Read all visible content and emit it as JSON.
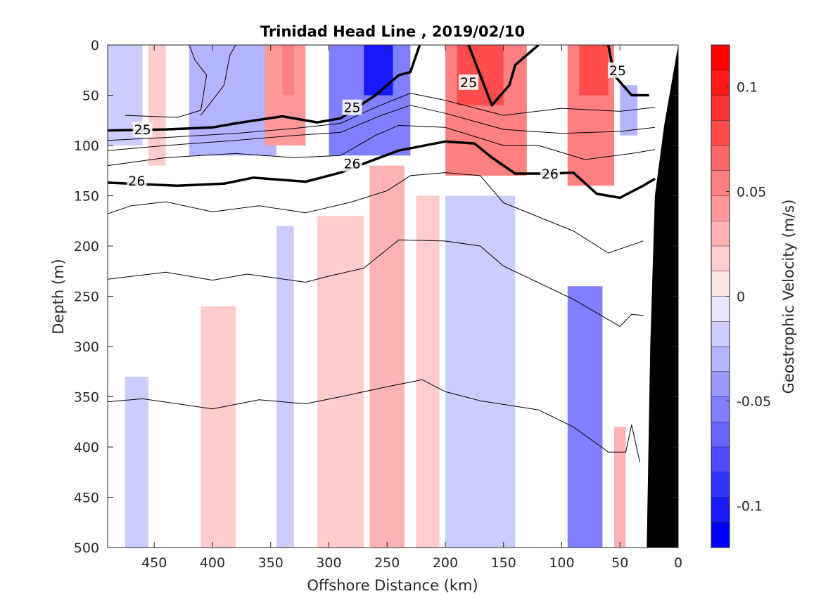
{
  "chart_data": {
    "type": "heatmap",
    "title": "Trinidad Head Line , 2019/02/10",
    "xlabel": "Offshore Distance (km)",
    "ylabel": "Depth (m)",
    "colorbar_label": "Geostrophic Velocity (m/s)",
    "xlim": [
      490,
      0
    ],
    "ylim": [
      500,
      0
    ],
    "x_reversed": true,
    "y_reversed": true,
    "xticks": [
      450,
      400,
      350,
      300,
      250,
      200,
      150,
      100,
      50,
      0
    ],
    "xtick_labels": [
      "450",
      "400",
      "350",
      "300",
      "250",
      "200",
      "150",
      "100",
      "50",
      "0"
    ],
    "yticks": [
      0,
      50,
      100,
      150,
      200,
      250,
      300,
      350,
      400,
      450,
      500
    ],
    "ytick_labels": [
      "0",
      "50",
      "100",
      "150",
      "200",
      "250",
      "300",
      "350",
      "400",
      "450",
      "500"
    ],
    "colorbar": {
      "range": [
        -0.12,
        0.12
      ],
      "ticks": [
        0.1,
        0.05,
        0,
        -0.05,
        -0.1
      ],
      "tick_labels": [
        "0.1",
        "0.05",
        "0",
        "-0.05",
        "-0.1"
      ],
      "levels": 20,
      "negative_color": "#0000ff",
      "zero_color": "#ffffff",
      "positive_color": "#ff0000"
    },
    "velocity_cells": [
      {
        "x0": 490,
        "x1": 460,
        "z0": 0,
        "z1": 100,
        "v": -0.02
      },
      {
        "x0": 455,
        "x1": 440,
        "z0": 0,
        "z1": 120,
        "v": 0.02
      },
      {
        "x0": 420,
        "x1": 345,
        "z0": 0,
        "z1": 110,
        "v": -0.03
      },
      {
        "x0": 355,
        "x1": 320,
        "z0": 0,
        "z1": 100,
        "v": 0.04
      },
      {
        "x0": 340,
        "x1": 330,
        "z0": 0,
        "z1": 50,
        "v": 0.06
      },
      {
        "x0": 300,
        "x1": 230,
        "z0": 0,
        "z1": 110,
        "v": -0.05
      },
      {
        "x0": 270,
        "x1": 245,
        "z0": 0,
        "z1": 50,
        "v": -0.1
      },
      {
        "x0": 200,
        "x1": 130,
        "z0": 0,
        "z1": 130,
        "v": 0.05
      },
      {
        "x0": 190,
        "x1": 150,
        "z0": 0,
        "z1": 60,
        "v": 0.08
      },
      {
        "x0": 95,
        "x1": 55,
        "z0": 0,
        "z1": 140,
        "v": 0.05
      },
      {
        "x0": 85,
        "x1": 60,
        "z0": 0,
        "z1": 50,
        "v": 0.08
      },
      {
        "x0": 50,
        "x1": 35,
        "z0": 40,
        "z1": 90,
        "v": -0.03
      },
      {
        "x0": 310,
        "x1": 270,
        "z0": 170,
        "z1": 500,
        "v": 0.015
      },
      {
        "x0": 265,
        "x1": 235,
        "z0": 120,
        "z1": 500,
        "v": 0.03
      },
      {
        "x0": 225,
        "x1": 205,
        "z0": 150,
        "z1": 500,
        "v": 0.015
      },
      {
        "x0": 200,
        "x1": 140,
        "z0": 150,
        "z1": 500,
        "v": -0.02
      },
      {
        "x0": 95,
        "x1": 65,
        "z0": 240,
        "z1": 500,
        "v": -0.05
      },
      {
        "x0": 410,
        "x1": 380,
        "z0": 260,
        "z1": 500,
        "v": 0.015
      },
      {
        "x0": 345,
        "x1": 330,
        "z0": 180,
        "z1": 500,
        "v": -0.015
      },
      {
        "x0": 475,
        "x1": 455,
        "z0": 330,
        "z1": 500,
        "v": -0.015
      },
      {
        "x0": 55,
        "x1": 45,
        "z0": 380,
        "z1": 500,
        "v": 0.03
      }
    ],
    "isopycnals": [
      {
        "level": 25,
        "bold": true,
        "labels": [
          {
            "text": "25",
            "x": 460,
            "z": 84
          },
          {
            "text": "25",
            "x": 280,
            "z": 62
          },
          {
            "text": "25",
            "x": 180,
            "z": 37
          },
          {
            "text": "25",
            "x": 52,
            "z": 25
          }
        ]
      },
      {
        "level": 26,
        "bold": true,
        "labels": [
          {
            "text": "26",
            "x": 465,
            "z": 135
          },
          {
            "text": "26",
            "x": 280,
            "z": 118
          },
          {
            "text": "26",
            "x": 110,
            "z": 128
          }
        ]
      }
    ],
    "contour_lines": [
      {
        "bold": false,
        "points": [
          [
            475,
            70
          ],
          [
            430,
            72
          ],
          [
            410,
            65
          ],
          [
            405,
            30
          ],
          [
            415,
            15
          ],
          [
            420,
            0
          ]
        ]
      },
      {
        "bold": false,
        "points": [
          [
            410,
            70
          ],
          [
            390,
            40
          ],
          [
            385,
            10
          ],
          [
            380,
            0
          ]
        ]
      },
      {
        "bold": true,
        "points": [
          [
            490,
            85
          ],
          [
            440,
            84
          ],
          [
            400,
            82
          ],
          [
            380,
            78
          ],
          [
            340,
            71
          ],
          [
            310,
            77
          ],
          [
            290,
            73
          ],
          [
            260,
            50
          ],
          [
            240,
            30
          ],
          [
            230,
            27
          ],
          [
            222,
            0
          ]
        ]
      },
      {
        "bold": true,
        "points": [
          [
            180,
            0
          ],
          [
            170,
            30
          ],
          [
            160,
            60
          ],
          [
            145,
            40
          ],
          [
            140,
            20
          ],
          [
            120,
            0
          ]
        ]
      },
      {
        "bold": true,
        "points": [
          [
            60,
            0
          ],
          [
            55,
            30
          ],
          [
            40,
            50
          ],
          [
            25,
            50
          ]
        ]
      },
      {
        "bold": false,
        "points": [
          [
            490,
            95
          ],
          [
            440,
            92
          ],
          [
            380,
            88
          ],
          [
            330,
            83
          ],
          [
            290,
            78
          ],
          [
            260,
            62
          ],
          [
            230,
            48
          ],
          [
            200,
            55
          ],
          [
            150,
            70
          ],
          [
            100,
            63
          ],
          [
            50,
            66
          ],
          [
            20,
            62
          ]
        ]
      },
      {
        "bold": false,
        "points": [
          [
            490,
            105
          ],
          [
            440,
            100
          ],
          [
            380,
            95
          ],
          [
            330,
            90
          ],
          [
            290,
            87
          ],
          [
            255,
            70
          ],
          [
            230,
            60
          ],
          [
            200,
            68
          ],
          [
            150,
            84
          ],
          [
            100,
            88
          ],
          [
            50,
            86
          ],
          [
            20,
            82
          ]
        ]
      },
      {
        "bold": false,
        "points": [
          [
            490,
            120
          ],
          [
            440,
            112
          ],
          [
            380,
            108
          ],
          [
            330,
            112
          ],
          [
            290,
            110
          ],
          [
            260,
            90
          ],
          [
            240,
            80
          ],
          [
            200,
            82
          ],
          [
            150,
            100
          ],
          [
            120,
            100
          ],
          [
            80,
            114
          ],
          [
            40,
            108
          ],
          [
            20,
            104
          ]
        ]
      },
      {
        "bold": true,
        "points": [
          [
            490,
            137
          ],
          [
            430,
            140
          ],
          [
            390,
            138
          ],
          [
            365,
            132
          ],
          [
            320,
            136
          ],
          [
            290,
            127
          ],
          [
            270,
            118
          ],
          [
            240,
            105
          ],
          [
            200,
            96
          ],
          [
            175,
            98
          ],
          [
            160,
            112
          ],
          [
            140,
            128
          ],
          [
            110,
            128
          ],
          [
            90,
            127
          ],
          [
            70,
            148
          ],
          [
            50,
            152
          ],
          [
            30,
            140
          ],
          [
            20,
            133
          ]
        ]
      },
      {
        "bold": false,
        "points": [
          [
            490,
            168
          ],
          [
            470,
            160
          ],
          [
            440,
            156
          ],
          [
            400,
            166
          ],
          [
            360,
            160
          ],
          [
            320,
            167
          ],
          [
            280,
            156
          ],
          [
            250,
            145
          ],
          [
            230,
            130
          ],
          [
            200,
            127
          ],
          [
            170,
            130
          ],
          [
            150,
            157
          ],
          [
            90,
            185
          ],
          [
            60,
            207
          ],
          [
            30,
            195
          ]
        ]
      },
      {
        "bold": false,
        "points": [
          [
            490,
            233
          ],
          [
            440,
            226
          ],
          [
            400,
            234
          ],
          [
            370,
            228
          ],
          [
            320,
            236
          ],
          [
            300,
            230
          ],
          [
            270,
            222
          ],
          [
            240,
            194
          ],
          [
            200,
            195
          ],
          [
            170,
            200
          ],
          [
            150,
            220
          ],
          [
            90,
            253
          ],
          [
            50,
            280
          ],
          [
            40,
            268
          ],
          [
            30,
            269
          ]
        ]
      },
      {
        "bold": false,
        "points": [
          [
            490,
            355
          ],
          [
            460,
            352
          ],
          [
            400,
            362
          ],
          [
            360,
            353
          ],
          [
            320,
            357
          ],
          [
            290,
            350
          ],
          [
            250,
            340
          ],
          [
            220,
            333
          ],
          [
            200,
            345
          ],
          [
            170,
            354
          ],
          [
            120,
            363
          ],
          [
            90,
            380
          ],
          [
            60,
            405
          ],
          [
            45,
            405
          ],
          [
            40,
            378
          ],
          [
            33,
            415
          ]
        ]
      }
    ]
  }
}
